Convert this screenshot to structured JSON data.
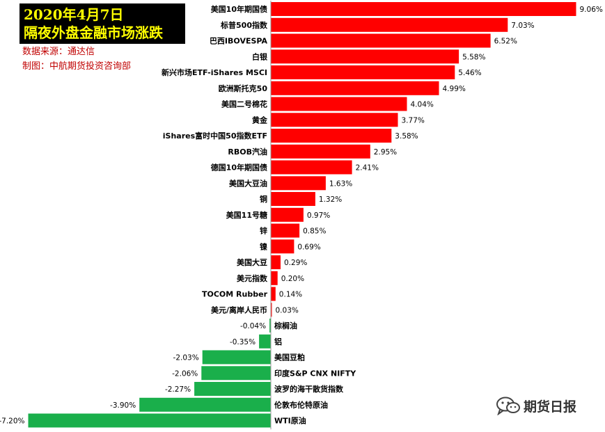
{
  "header": {
    "title_line1": "2020年4月7日",
    "title_line2": "隔夜外盘金融市场涨跌"
  },
  "notes": {
    "source": "数据来源：通达信",
    "maker": "制图：中航期货投资咨询部"
  },
  "watermark": {
    "icon": "wechat-icon",
    "text": "期货日报"
  },
  "colors": {
    "positive": "#ff0000",
    "negative": "#1aaf4b"
  },
  "chart_data": {
    "type": "bar",
    "orientation": "horizontal",
    "categories": [
      "美国10年期国债",
      "标普500指数",
      "巴西IBOVESPA",
      "白银",
      "新兴市场ETF-iShares MSCI",
      "欧洲斯托克50",
      "美国二号棉花",
      "黄金",
      "iShares富时中国50指数ETF",
      "RBOB汽油",
      "德国10年期国债",
      "美国大豆油",
      "铜",
      "美国11号糖",
      "锌",
      "镍",
      "美国大豆",
      "美元指数",
      "TOCOM Rubber",
      "美元/离岸人民币",
      "棕榈油",
      "铝",
      "美国豆粕",
      "印度S&P CNX NIFTY",
      "波罗的海干散货指数",
      "伦敦布伦特原油",
      "WTI原油"
    ],
    "values": [
      9.06,
      7.03,
      6.52,
      5.58,
      5.46,
      4.99,
      4.04,
      3.77,
      3.58,
      2.95,
      2.41,
      1.63,
      1.32,
      0.97,
      0.85,
      0.69,
      0.29,
      0.2,
      0.14,
      0.03,
      -0.04,
      -0.35,
      -2.03,
      -2.06,
      -2.27,
      -3.9,
      -7.2
    ],
    "value_labels": [
      "9.06%",
      "7.03%",
      "6.52%",
      "5.58%",
      "5.46%",
      "4.99%",
      "4.04%",
      "3.77%",
      "3.58%",
      "2.95%",
      "2.41%",
      "1.63%",
      "1.32%",
      "0.97%",
      "0.85%",
      "0.69%",
      "0.29%",
      "0.20%",
      "0.14%",
      "0.03%",
      "-0.04%",
      "-0.35%",
      "-2.03%",
      "-2.06%",
      "-2.27%",
      "-3.90%",
      "-7.20%"
    ],
    "unit": "%",
    "grid": false,
    "legend": "none"
  }
}
